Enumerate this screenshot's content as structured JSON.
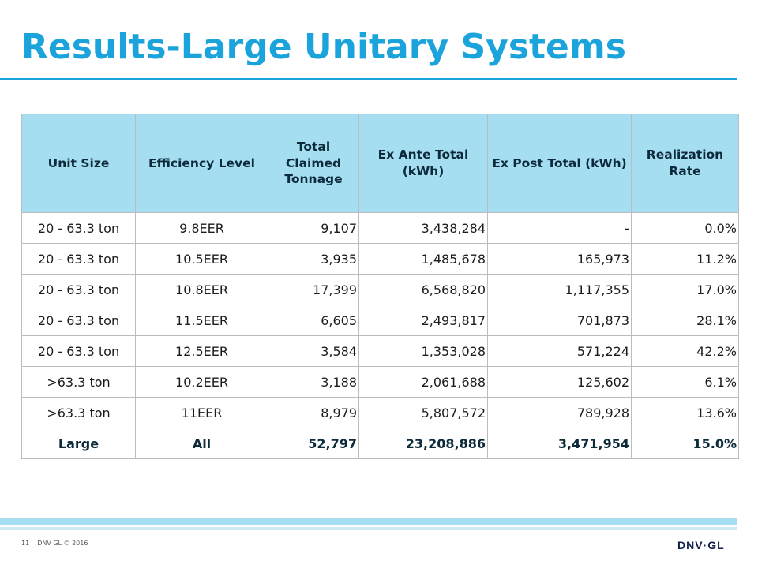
{
  "title": "Results-Large Unitary Systems",
  "table": {
    "headers": [
      "Unit Size",
      "Efficiency Level",
      "Total Claimed Tonnage",
      "Ex Ante Total (kWh)",
      "Ex Post Total (kWh)",
      "Realization Rate"
    ],
    "rows": [
      [
        "20 - 63.3 ton",
        "9.8EER",
        "9,107",
        "3,438,284",
        "-",
        "0.0%"
      ],
      [
        "20 - 63.3 ton",
        "10.5EER",
        "3,935",
        "1,485,678",
        "165,973",
        "11.2%"
      ],
      [
        "20 - 63.3 ton",
        "10.8EER",
        "17,399",
        "6,568,820",
        "1,117,355",
        "17.0%"
      ],
      [
        "20 - 63.3 ton",
        "11.5EER",
        "6,605",
        "2,493,817",
        "701,873",
        "28.1%"
      ],
      [
        "20 - 63.3 ton",
        "12.5EER",
        "3,584",
        "1,353,028",
        "571,224",
        "42.2%"
      ],
      [
        ">63.3 ton",
        "10.2EER",
        "3,188",
        "2,061,688",
        "125,602",
        "6.1%"
      ],
      [
        ">63.3 ton",
        "11EER",
        "8,979",
        "5,807,572",
        "789,928",
        "13.6%"
      ]
    ],
    "total": [
      "Large",
      "All",
      "52,797",
      "23,208,886",
      "3,471,954",
      "15.0%"
    ]
  },
  "footer": {
    "page_number": "11",
    "copyright": "DNV GL © 2016",
    "logo_text": "DNV·GL"
  },
  "colors": {
    "title": "#1ba3dc",
    "header_fill": "#a6def1",
    "footer_band": "#a6def1"
  }
}
